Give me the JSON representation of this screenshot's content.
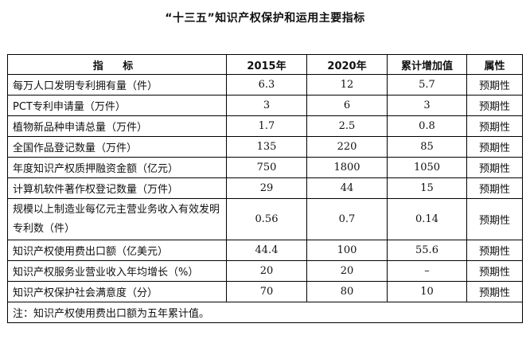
{
  "title": "“十三五”知识产权保护和运用主要指标",
  "headers": {
    "indicator": "指  标",
    "y2015": "2015年",
    "y2020": "2020年",
    "growth": "累计增加值",
    "attr": "属性"
  },
  "rows": [
    {
      "name": "每万人口发明专利拥有量（件）",
      "v2015": "6.3",
      "v2020": "12",
      "growth": "5.7",
      "attr": "预期性"
    },
    {
      "name": "PCT专利申请量（万件）",
      "v2015": "3",
      "v2020": "6",
      "growth": "3",
      "attr": "预期性"
    },
    {
      "name": "植物新品种申请总量（万件）",
      "v2015": "1.7",
      "v2020": "2.5",
      "growth": "0.8",
      "attr": "预期性"
    },
    {
      "name": "全国作品登记数量（万件）",
      "v2015": "135",
      "v2020": "220",
      "growth": "85",
      "attr": "预期性"
    },
    {
      "name": "年度知识产权质押融资金额（亿元）",
      "v2015": "750",
      "v2020": "1800",
      "growth": "1050",
      "attr": "预期性"
    },
    {
      "name": "计算机软件著作权登记数量（万件）",
      "v2015": "29",
      "v2020": "44",
      "growth": "15",
      "attr": "预期性"
    },
    {
      "name": "规模以上制造业每亿元主营业务收入有效发明专利数（件）",
      "v2015": "0.56",
      "v2020": "0.7",
      "growth": "0.14",
      "attr": "预期性"
    },
    {
      "name": "知识产权使用费出口额（亿美元）",
      "v2015": "44.4",
      "v2020": "100",
      "growth": "55.6",
      "attr": "预期性"
    },
    {
      "name": "知识产权服务业营业收入年均增长（%）",
      "v2015": "20",
      "v2020": "20",
      "growth": "–",
      "attr": "预期性"
    },
    {
      "name": "知识产权保护社会满意度（分）",
      "v2015": "70",
      "v2020": "80",
      "growth": "10",
      "attr": "预期性"
    }
  ],
  "note": "注：知识产权使用费出口额为五年累计值。"
}
